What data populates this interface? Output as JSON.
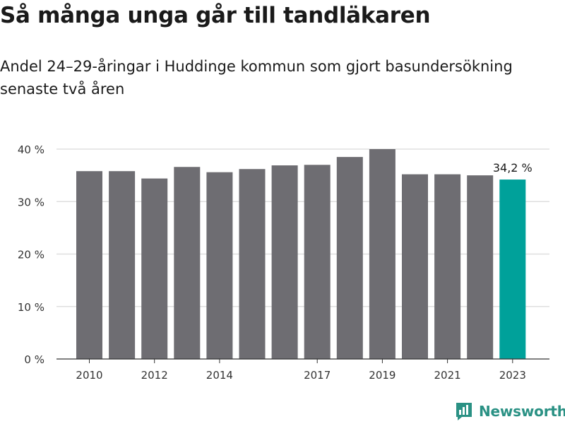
{
  "header": {
    "title": "Så många unga går till tandläkaren",
    "subtitle": "Andel 24–29-åringar i Huddinge kommun som gjort basundersökning senaste två åren"
  },
  "brand": {
    "name": "Newsworthy",
    "color": "#2a9184"
  },
  "chart_data": {
    "type": "bar",
    "categories": [
      "2010",
      "2011",
      "2012",
      "2013",
      "2014",
      "2015",
      "2016",
      "2017",
      "2018",
      "2019",
      "2020",
      "2021",
      "2022",
      "2023"
    ],
    "values": [
      35.8,
      35.8,
      34.4,
      36.6,
      35.6,
      36.2,
      36.9,
      37.0,
      38.5,
      40.0,
      35.2,
      35.2,
      35.0,
      34.2
    ],
    "x_tick_labels": [
      "2010",
      "2012",
      "2014",
      "2017",
      "2019",
      "2021",
      "2023"
    ],
    "y_ticks": [
      0,
      10,
      20,
      30,
      40
    ],
    "y_tick_labels": [
      "0 %",
      "10 %",
      "20 %",
      "30 %",
      "40 %"
    ],
    "ylim": [
      0,
      40
    ],
    "grid": true,
    "highlight": {
      "category": "2023",
      "label": "34,2 %"
    },
    "colors": {
      "bar": "#6e6d72",
      "highlight": "#00a19a",
      "grid": "#d9d9d9",
      "axis": "#333333"
    }
  }
}
